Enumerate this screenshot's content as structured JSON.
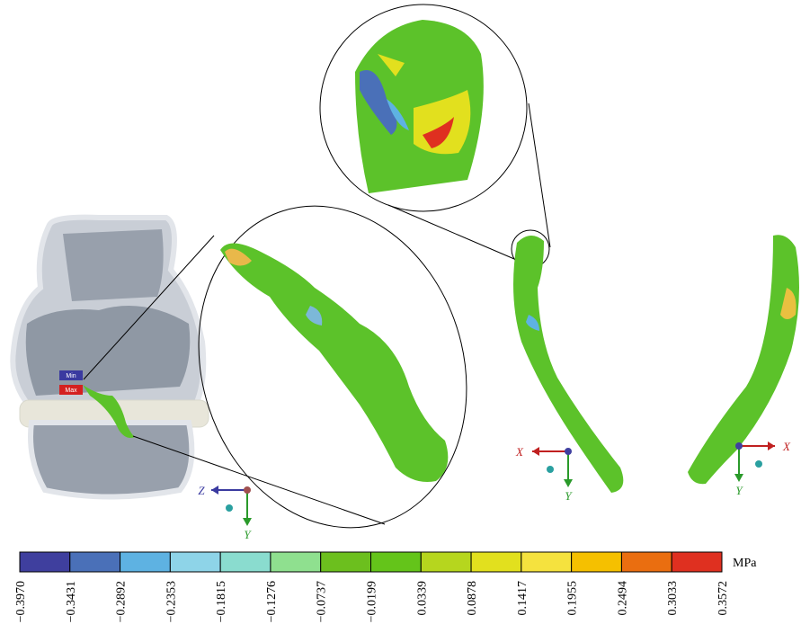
{
  "knee_labels": {
    "min": "Min",
    "max": "Max"
  },
  "triads": [
    {
      "horizontal": "Z",
      "vertical": "Y"
    },
    {
      "horizontal": "X",
      "vertical": "Y"
    },
    {
      "horizontal": "X",
      "vertical": "Y"
    }
  ],
  "colorbar": {
    "unit": "MPa",
    "ticks": [
      "−0.3970",
      "−0.3431",
      "−0.2892",
      "−0.2353",
      "−0.1815",
      "−0.1276",
      "−0.0737",
      "−0.0199",
      "0.0339",
      "0.0878",
      "0.1417",
      "0.1955",
      "0.2494",
      "0.3033",
      "0.3572"
    ],
    "colors": [
      "#3f3f9e",
      "#4a70b8",
      "#5eb2e2",
      "#8ed4e8",
      "#8adccf",
      "#8fe08f",
      "#6cbf1e",
      "#64c41a",
      "#b6d61e",
      "#e2e01e",
      "#f5e23e",
      "#f5c000",
      "#ea6e10",
      "#df3020"
    ]
  }
}
